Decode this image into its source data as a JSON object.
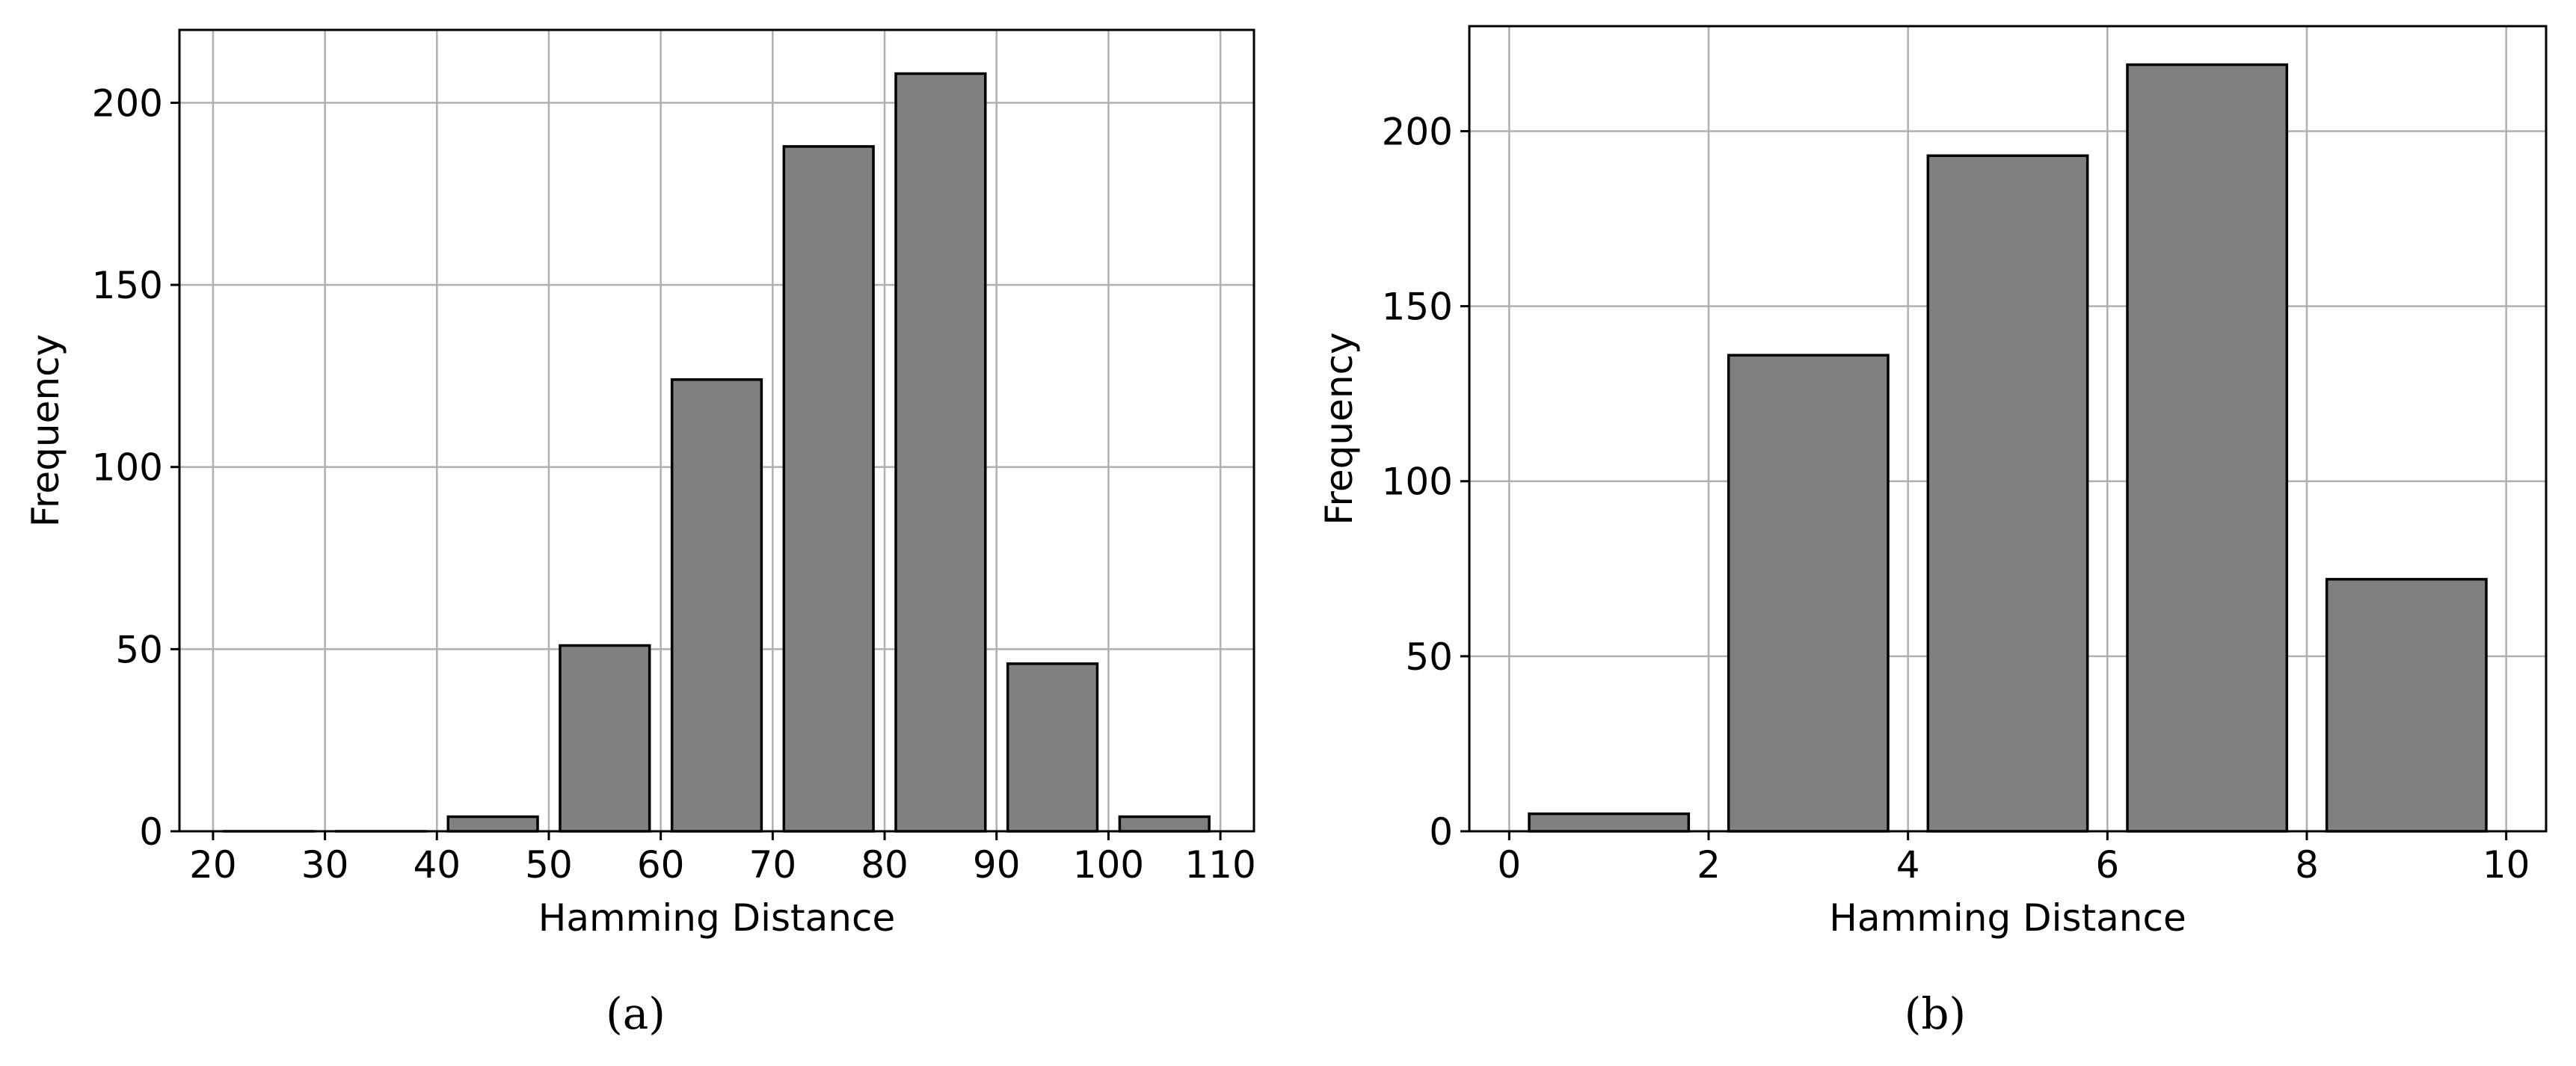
{
  "chart_data": [
    {
      "type": "bar",
      "panel_label": "(a)",
      "xlabel": "Hamming Distance",
      "ylabel": "Frequency",
      "xlim": [
        17,
        113
      ],
      "ylim": [
        0,
        220
      ],
      "xticks": [
        20,
        30,
        40,
        50,
        60,
        70,
        80,
        90,
        100,
        110
      ],
      "yticks": [
        0,
        50,
        100,
        150,
        200
      ],
      "grid": true,
      "bin_edges": [
        20,
        30,
        40,
        50,
        60,
        70,
        80,
        90,
        100,
        110
      ],
      "values": [
        0,
        0,
        4,
        51,
        124,
        188,
        208,
        46,
        4
      ],
      "bar_color": "#808080",
      "edge_color": "#000000"
    },
    {
      "type": "bar",
      "panel_label": "(b)",
      "xlabel": "Hamming Distance",
      "ylabel": "Frequency",
      "xlim": [
        -0.4,
        10.4
      ],
      "ylim": [
        0,
        230
      ],
      "xticks": [
        0,
        2,
        4,
        6,
        8,
        10
      ],
      "yticks": [
        0,
        50,
        100,
        150,
        200
      ],
      "grid": true,
      "bin_edges": [
        0,
        2,
        4,
        6,
        8,
        10
      ],
      "values": [
        5,
        136,
        193,
        219,
        72
      ],
      "bar_color": "#808080",
      "edge_color": "#000000"
    }
  ]
}
